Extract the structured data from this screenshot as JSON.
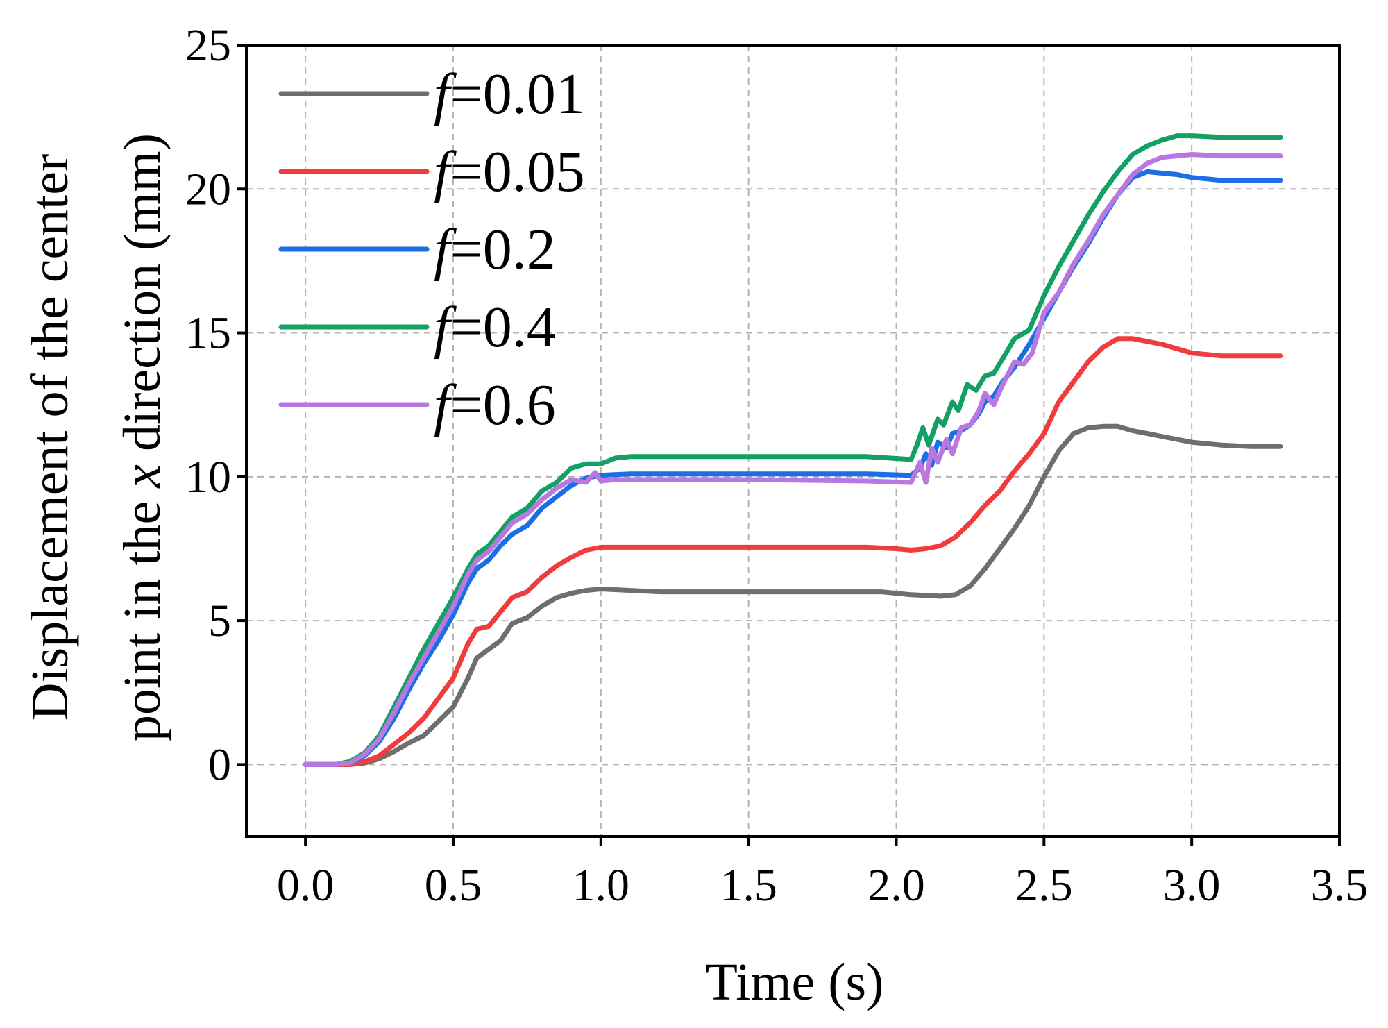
{
  "chart_data": {
    "type": "line",
    "xlabel": "Time (s)",
    "ylabel_line1": "Displacement of the center",
    "ylabel_line2_prefix": "point in the ",
    "ylabel_line2_var": "x",
    "ylabel_line2_suffix": " direction (mm)",
    "xlim": [
      -0.2,
      3.5
    ],
    "ylim": [
      -2.5,
      25
    ],
    "xticks": [
      0.0,
      0.5,
      1.0,
      1.5,
      2.0,
      2.5,
      3.0,
      3.5
    ],
    "xtick_labels": [
      "0.0",
      "0.5",
      "1.0",
      "1.5",
      "2.0",
      "2.5",
      "3.0",
      "3.5"
    ],
    "yticks": [
      0,
      5,
      10,
      15,
      20,
      25
    ],
    "ytick_labels": [
      "0",
      "5",
      "10",
      "15",
      "20",
      "25"
    ],
    "grid": true,
    "legend_position": "top-left",
    "series": [
      {
        "name": "f=0.01",
        "label_var": "f",
        "label_value": "=0.01",
        "color": "#6e6e6e",
        "x": [
          0,
          0.1,
          0.15,
          0.2,
          0.25,
          0.3,
          0.35,
          0.4,
          0.45,
          0.5,
          0.55,
          0.58,
          0.62,
          0.66,
          0.7,
          0.75,
          0.8,
          0.85,
          0.9,
          0.95,
          1.0,
          1.1,
          1.2,
          1.5,
          1.8,
          1.95,
          2.0,
          2.05,
          2.15,
          2.2,
          2.25,
          2.3,
          2.35,
          2.4,
          2.45,
          2.5,
          2.55,
          2.6,
          2.65,
          2.7,
          2.75,
          2.8,
          2.85,
          2.9,
          2.95,
          3.0,
          3.1,
          3.2,
          3.3
        ],
        "y": [
          0,
          0,
          0,
          0.05,
          0.2,
          0.45,
          0.75,
          1.0,
          1.5,
          2.0,
          3.0,
          3.7,
          4.0,
          4.3,
          4.9,
          5.1,
          5.5,
          5.8,
          5.95,
          6.05,
          6.1,
          6.05,
          6.0,
          6.0,
          6.0,
          6.0,
          5.95,
          5.9,
          5.85,
          5.9,
          6.2,
          6.8,
          7.5,
          8.2,
          9.0,
          10.0,
          10.9,
          11.5,
          11.7,
          11.75,
          11.75,
          11.6,
          11.5,
          11.4,
          11.3,
          11.2,
          11.1,
          11.05,
          11.05
        ]
      },
      {
        "name": "f=0.05",
        "label_var": "f",
        "label_value": "=0.05",
        "color": "#f03c3c",
        "x": [
          0,
          0.1,
          0.15,
          0.2,
          0.25,
          0.3,
          0.35,
          0.4,
          0.45,
          0.5,
          0.55,
          0.58,
          0.62,
          0.66,
          0.7,
          0.75,
          0.8,
          0.85,
          0.9,
          0.95,
          1.0,
          1.1,
          1.5,
          1.9,
          2.0,
          2.05,
          2.1,
          2.15,
          2.2,
          2.25,
          2.3,
          2.35,
          2.4,
          2.45,
          2.5,
          2.55,
          2.6,
          2.65,
          2.7,
          2.75,
          2.8,
          2.85,
          2.9,
          2.95,
          3.0,
          3.1,
          3.2,
          3.3
        ],
        "y": [
          0,
          0,
          0,
          0.1,
          0.3,
          0.7,
          1.1,
          1.6,
          2.3,
          3.0,
          4.2,
          4.7,
          4.8,
          5.3,
          5.8,
          6.0,
          6.5,
          6.9,
          7.2,
          7.45,
          7.55,
          7.55,
          7.55,
          7.55,
          7.5,
          7.45,
          7.5,
          7.6,
          7.9,
          8.4,
          9.0,
          9.5,
          10.2,
          10.8,
          11.5,
          12.6,
          13.3,
          14.0,
          14.5,
          14.8,
          14.8,
          14.7,
          14.6,
          14.45,
          14.3,
          14.2,
          14.2,
          14.2
        ]
      },
      {
        "name": "f=0.2",
        "label_var": "f",
        "label_value": "=0.2",
        "color": "#1a6ee6",
        "x": [
          0,
          0.1,
          0.15,
          0.2,
          0.25,
          0.3,
          0.35,
          0.4,
          0.45,
          0.5,
          0.55,
          0.58,
          0.62,
          0.66,
          0.7,
          0.75,
          0.8,
          0.85,
          0.9,
          0.95,
          1.0,
          1.1,
          1.5,
          1.9,
          2.05,
          2.08,
          2.1,
          2.12,
          2.14,
          2.17,
          2.19,
          2.22,
          2.25,
          2.28,
          2.3,
          2.33,
          2.36,
          2.4,
          2.45,
          2.5,
          2.55,
          2.6,
          2.65,
          2.7,
          2.75,
          2.8,
          2.85,
          2.9,
          2.95,
          3.0,
          3.1,
          3.2,
          3.3
        ],
        "y": [
          0,
          0,
          0.05,
          0.3,
          0.8,
          1.6,
          2.6,
          3.5,
          4.3,
          5.2,
          6.3,
          6.8,
          7.1,
          7.6,
          8.0,
          8.3,
          8.9,
          9.3,
          9.7,
          9.95,
          10.05,
          10.1,
          10.1,
          10.1,
          10.05,
          10.3,
          10.8,
          10.4,
          11.2,
          11.0,
          11.5,
          11.6,
          11.8,
          12.2,
          12.6,
          12.8,
          13.3,
          13.8,
          14.6,
          15.5,
          16.4,
          17.3,
          18.1,
          19.0,
          19.8,
          20.4,
          20.6,
          20.55,
          20.5,
          20.4,
          20.3,
          20.3,
          20.3
        ]
      },
      {
        "name": "f=0.4",
        "label_var": "f",
        "label_value": "=0.4",
        "color": "#13a065",
        "x": [
          0,
          0.1,
          0.15,
          0.2,
          0.25,
          0.3,
          0.35,
          0.4,
          0.45,
          0.5,
          0.55,
          0.58,
          0.62,
          0.66,
          0.7,
          0.75,
          0.8,
          0.85,
          0.9,
          0.95,
          1.0,
          1.05,
          1.1,
          1.5,
          1.9,
          2.05,
          2.07,
          2.09,
          2.11,
          2.14,
          2.16,
          2.19,
          2.21,
          2.24,
          2.27,
          2.3,
          2.33,
          2.36,
          2.4,
          2.45,
          2.5,
          2.55,
          2.6,
          2.65,
          2.7,
          2.75,
          2.8,
          2.85,
          2.9,
          2.95,
          3.0,
          3.1,
          3.2,
          3.3
        ],
        "y": [
          0,
          0,
          0.1,
          0.4,
          1.0,
          2.0,
          3.0,
          4.0,
          4.9,
          5.8,
          6.8,
          7.3,
          7.6,
          8.1,
          8.6,
          8.9,
          9.5,
          9.8,
          10.3,
          10.45,
          10.45,
          10.65,
          10.7,
          10.7,
          10.7,
          10.6,
          11.1,
          11.7,
          11.1,
          12.0,
          11.8,
          12.6,
          12.3,
          13.2,
          13.0,
          13.5,
          13.6,
          14.1,
          14.8,
          15.1,
          16.3,
          17.3,
          18.2,
          19.1,
          19.9,
          20.6,
          21.2,
          21.5,
          21.7,
          21.85,
          21.85,
          21.8,
          21.8,
          21.8
        ]
      },
      {
        "name": "f=0.6",
        "label_var": "f",
        "label_value": "=0.6",
        "color": "#b878e0",
        "x": [
          0,
          0.1,
          0.15,
          0.2,
          0.25,
          0.3,
          0.35,
          0.4,
          0.45,
          0.5,
          0.55,
          0.58,
          0.62,
          0.66,
          0.7,
          0.75,
          0.8,
          0.85,
          0.9,
          0.95,
          0.98,
          1.0,
          1.05,
          1.5,
          1.9,
          2.05,
          2.08,
          2.1,
          2.12,
          2.14,
          2.17,
          2.19,
          2.22,
          2.25,
          2.28,
          2.3,
          2.33,
          2.36,
          2.4,
          2.43,
          2.46,
          2.5,
          2.55,
          2.6,
          2.65,
          2.7,
          2.75,
          2.8,
          2.85,
          2.9,
          2.95,
          3.0,
          3.1,
          3.2,
          3.3
        ],
        "y": [
          0,
          0,
          0.05,
          0.35,
          0.9,
          1.8,
          2.8,
          3.7,
          4.6,
          5.5,
          6.6,
          7.1,
          7.4,
          7.9,
          8.4,
          8.7,
          9.2,
          9.6,
          9.9,
          9.8,
          10.15,
          9.85,
          9.9,
          9.9,
          9.85,
          9.8,
          10.5,
          9.8,
          11.0,
          10.5,
          11.3,
          10.8,
          11.7,
          11.8,
          12.3,
          12.9,
          12.5,
          13.2,
          14.0,
          13.9,
          14.3,
          15.7,
          16.4,
          17.4,
          18.2,
          19.1,
          19.8,
          20.5,
          20.9,
          21.1,
          21.15,
          21.2,
          21.15,
          21.15,
          21.15
        ]
      }
    ]
  }
}
